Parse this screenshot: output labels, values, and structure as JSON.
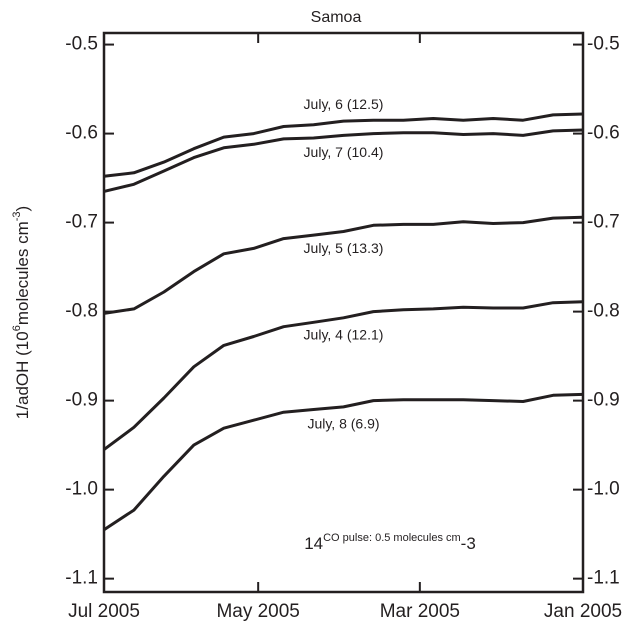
{
  "chart_data": {
    "type": "line",
    "title": "Samoa",
    "ylabel_parts": [
      "1/adOH (10",
      "6",
      "molecules  cm",
      "-3",
      ")"
    ],
    "annotation_parts": [
      "14",
      "CO pulse: 0.5 molecules cm",
      "-3"
    ],
    "x": [
      0,
      1,
      2,
      3,
      4,
      5,
      6,
      7,
      8,
      9,
      10,
      11,
      12,
      13,
      14,
      15,
      16
    ],
    "xlim": [
      0,
      16
    ],
    "xticks": [
      {
        "value": 0,
        "label": "Jul 2005"
      },
      {
        "value": 5.15,
        "label": "May 2005"
      },
      {
        "value": 10.55,
        "label": "Mar 2005"
      },
      {
        "value": 16,
        "label": "Jan 2005"
      }
    ],
    "ylim": [
      -1.115,
      -0.487
    ],
    "yticks": [
      -0.5,
      -0.6,
      -0.7,
      -0.8,
      -0.9,
      {
        "value": -1.0,
        "label": "-1.0"
      },
      -1.1
    ],
    "mirror_y_axis": true,
    "series": [
      {
        "name": "July, 6 (12.5)",
        "color": "#231f20",
        "values": [
          -0.648,
          -0.644,
          -0.632,
          -0.617,
          -0.604,
          -0.6,
          -0.592,
          -0.59,
          -0.586,
          -0.585,
          -0.585,
          -0.583,
          -0.585,
          -0.583,
          -0.585,
          -0.579,
          -0.578
        ]
      },
      {
        "name": "July, 7 (10.4)",
        "color": "#231f20",
        "values": [
          -0.665,
          -0.657,
          -0.642,
          -0.627,
          -0.616,
          -0.612,
          -0.606,
          -0.605,
          -0.602,
          -0.6,
          -0.599,
          -0.599,
          -0.601,
          -0.6,
          -0.602,
          -0.597,
          -0.596
        ]
      },
      {
        "name": "July, 5 (13.3)",
        "color": "#231f20",
        "values": [
          -0.802,
          -0.797,
          -0.778,
          -0.755,
          -0.735,
          -0.729,
          -0.718,
          -0.714,
          -0.71,
          -0.703,
          -0.702,
          -0.702,
          -0.699,
          -0.701,
          -0.7,
          -0.695,
          -0.694
        ]
      },
      {
        "name": "July, 4 (12.1)",
        "color": "#231f20",
        "values": [
          -0.955,
          -0.93,
          -0.897,
          -0.862,
          -0.838,
          -0.828,
          -0.817,
          -0.812,
          -0.807,
          -0.8,
          -0.798,
          -0.797,
          -0.795,
          -0.796,
          -0.796,
          -0.79,
          -0.789
        ]
      },
      {
        "name": "July, 8 (6.9)",
        "color": "#231f20",
        "values": [
          -1.045,
          -1.023,
          -0.985,
          -0.95,
          -0.931,
          -0.922,
          -0.913,
          -0.91,
          -0.907,
          -0.9,
          -0.899,
          -0.899,
          -0.899,
          -0.9,
          -0.901,
          -0.894,
          -0.893
        ]
      }
    ]
  }
}
